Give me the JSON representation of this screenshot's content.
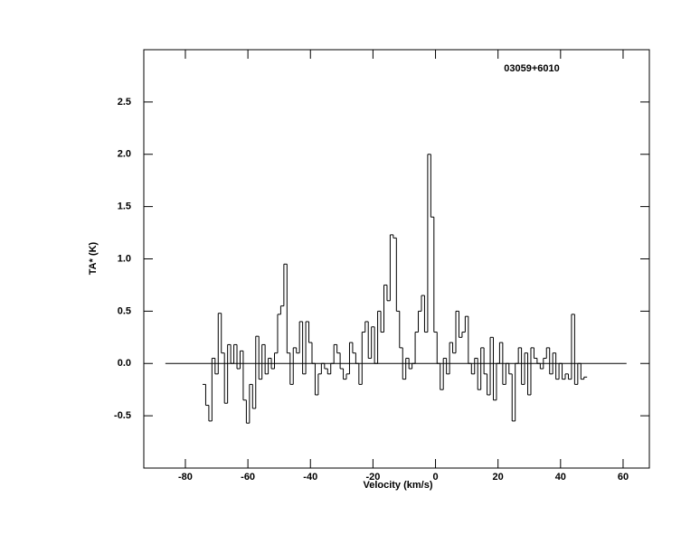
{
  "chart_data": {
    "type": "step",
    "title": "03059+6010",
    "xlabel": "Velocity (km/s)",
    "ylabel": "TA* (K)",
    "xlim": [
      -93.3,
      68.4
    ],
    "ylim": [
      -1.0,
      3.0
    ],
    "xticks": [
      -80,
      -60,
      -40,
      -20,
      0,
      20,
      40,
      60
    ],
    "yticks": [
      -0.5,
      {
        "value": 0,
        "label": "0.0"
      },
      0.5,
      {
        "value": 1,
        "label": "1.0"
      },
      1.5,
      {
        "value": 2,
        "label": "2.0"
      },
      2.5
    ],
    "baseline": {
      "x": [
        -86.4,
        61.1
      ],
      "y": 0
    },
    "color": "#000000",
    "x": [
      -74,
      -73,
      -72,
      -71,
      -70,
      -69,
      -68,
      -67,
      -66,
      -65,
      -64,
      -63,
      -62,
      -61,
      -60,
      -59,
      -58,
      -57,
      -56,
      -55,
      -54,
      -53,
      -52,
      -51,
      -50,
      -49,
      -48,
      -47,
      -46,
      -45,
      -44,
      -43,
      -42,
      -41,
      -40,
      -39,
      -38,
      -37,
      -36,
      -35,
      -34,
      -33,
      -32,
      -31,
      -30,
      -29,
      -28,
      -27,
      -26,
      -25,
      -24,
      -23,
      -22,
      -21,
      -20,
      -19,
      -18,
      -17,
      -16,
      -15,
      -14,
      -13,
      -12,
      -11,
      -10,
      -9,
      -8,
      -7,
      -6,
      -5,
      -4,
      -3,
      -2,
      -1,
      0,
      1,
      2,
      3,
      4,
      5,
      6,
      7,
      8,
      9,
      10,
      11,
      12,
      13,
      14,
      15,
      16,
      17,
      18,
      19,
      20,
      21,
      22,
      23,
      24,
      25,
      26,
      27,
      28,
      29,
      30,
      31,
      32,
      33,
      34,
      35,
      36,
      37,
      38,
      39,
      40,
      41,
      42,
      43,
      44,
      45,
      46,
      47,
      48
    ],
    "values": [
      -0.2,
      -0.4,
      -0.55,
      0.05,
      -0.1,
      0.48,
      0.1,
      -0.38,
      0.18,
      0.0,
      0.18,
      -0.05,
      0.12,
      -0.35,
      -0.57,
      -0.2,
      -0.43,
      0.26,
      -0.15,
      0.18,
      -0.1,
      0.05,
      -0.05,
      0.1,
      0.47,
      0.55,
      0.95,
      0.1,
      -0.2,
      0.15,
      0.1,
      0.4,
      -0.1,
      0.4,
      0.2,
      0.0,
      -0.3,
      -0.1,
      0.0,
      -0.05,
      -0.1,
      0.0,
      0.18,
      0.1,
      -0.05,
      -0.15,
      -0.1,
      0.2,
      0.1,
      0.0,
      -0.2,
      0.3,
      0.4,
      0.05,
      0.35,
      0.0,
      0.5,
      0.3,
      0.75,
      0.6,
      1.23,
      1.2,
      0.5,
      0.15,
      -0.15,
      0.05,
      -0.05,
      0.0,
      0.3,
      0.5,
      0.65,
      0.3,
      2.0,
      1.4,
      0.3,
      0.0,
      -0.25,
      0.05,
      -0.1,
      0.2,
      0.1,
      0.5,
      0.25,
      0.3,
      0.45,
      0.0,
      -0.1,
      0.05,
      -0.25,
      0.15,
      -0.1,
      -0.3,
      0.25,
      -0.35,
      0.0,
      0.2,
      -0.2,
      0.0,
      -0.1,
      -0.55,
      0.0,
      0.15,
      -0.2,
      0.1,
      -0.3,
      0.15,
      0.05,
      0.0,
      -0.05,
      0.05,
      0.15,
      -0.1,
      0.1,
      -0.15,
      0.0,
      -0.15,
      -0.1,
      -0.15,
      0.47,
      -0.2,
      0.0,
      -0.15,
      -0.13
    ]
  }
}
